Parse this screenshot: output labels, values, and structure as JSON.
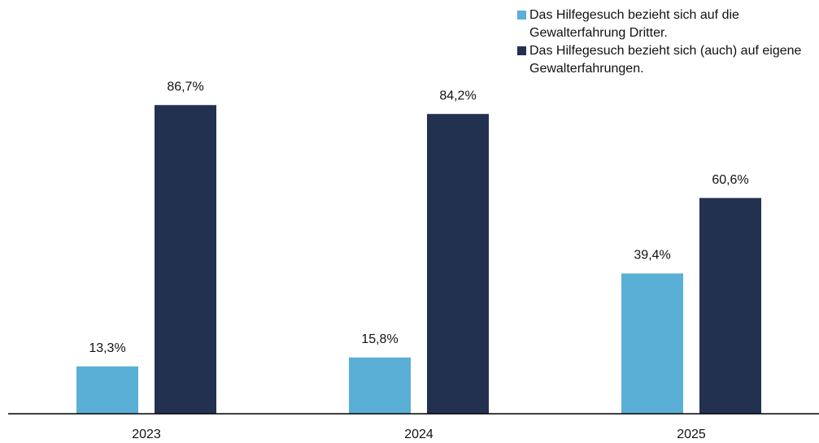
{
  "chart_data": {
    "type": "bar",
    "categories": [
      "2023",
      "2024",
      "2025"
    ],
    "series": [
      {
        "name": "Das Hilfegesuch bezieht sich auf die Gewalterfahrung Dritter.",
        "color": "#5aafd6",
        "values": [
          13.3,
          15.8,
          39.4
        ],
        "value_labels": [
          "13,3%",
          "15,8%",
          "39,4%"
        ]
      },
      {
        "name": "Das Hilfegesuch bezieht sich (auch) auf eigene Gewalterfahrungen.",
        "color": "#233151",
        "values": [
          86.7,
          84.2,
          60.6
        ],
        "value_labels": [
          "86,7%",
          "84,2%",
          "60,6%"
        ]
      }
    ]
  }
}
